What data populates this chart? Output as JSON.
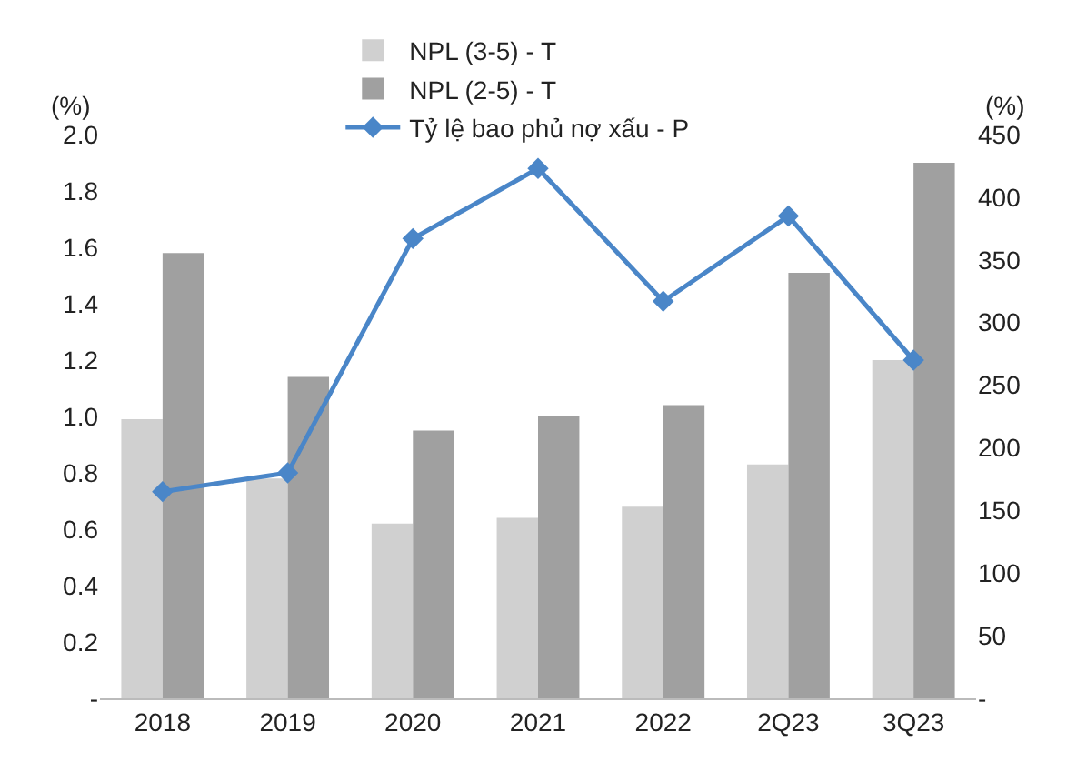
{
  "chart_data": {
    "type": "bar",
    "categories": [
      "2018",
      "2019",
      "2020",
      "2021",
      "2022",
      "2Q23",
      "3Q23"
    ],
    "series": [
      {
        "name": "NPL (3-5) - T",
        "color": "#d0d0d0",
        "values": [
          0.99,
          0.78,
          0.62,
          0.64,
          0.68,
          0.83,
          1.2
        ]
      },
      {
        "name": "NPL (2-5) - T",
        "color": "#a0a0a0",
        "values": [
          1.58,
          1.14,
          0.95,
          1.0,
          1.04,
          1.51,
          1.9
        ]
      },
      {
        "name": "Tỷ lệ bao phủ nợ xấu - P",
        "type": "line",
        "axis": "y2",
        "color": "#4a86c8",
        "marker": "diamond",
        "values": [
          165,
          180,
          367,
          423,
          317,
          385,
          270
        ]
      }
    ],
    "ylim": [
      0,
      2.0
    ],
    "yticks": [
      {
        "value": 0,
        "label": "-"
      },
      {
        "value": 0.2,
        "label": "0.2"
      },
      {
        "value": 0.4,
        "label": "0.4"
      },
      {
        "value": 0.6,
        "label": "0.6"
      },
      {
        "value": 0.8,
        "label": "0.8"
      },
      {
        "value": 1.0,
        "label": "1.0"
      },
      {
        "value": 1.2,
        "label": "1.2"
      },
      {
        "value": 1.4,
        "label": "1.4"
      },
      {
        "value": 1.6,
        "label": "1.6"
      },
      {
        "value": 1.8,
        "label": "1.8"
      },
      {
        "value": 2.0,
        "label": "2.0"
      }
    ],
    "y2lim": [
      0,
      450
    ],
    "y2ticks": [
      {
        "value": 0,
        "label": "-"
      },
      50,
      100,
      150,
      200,
      250,
      300,
      350,
      400,
      450
    ],
    "ylabel": "(%)",
    "y2label": "(%)",
    "grid": false,
    "legend": "top"
  }
}
